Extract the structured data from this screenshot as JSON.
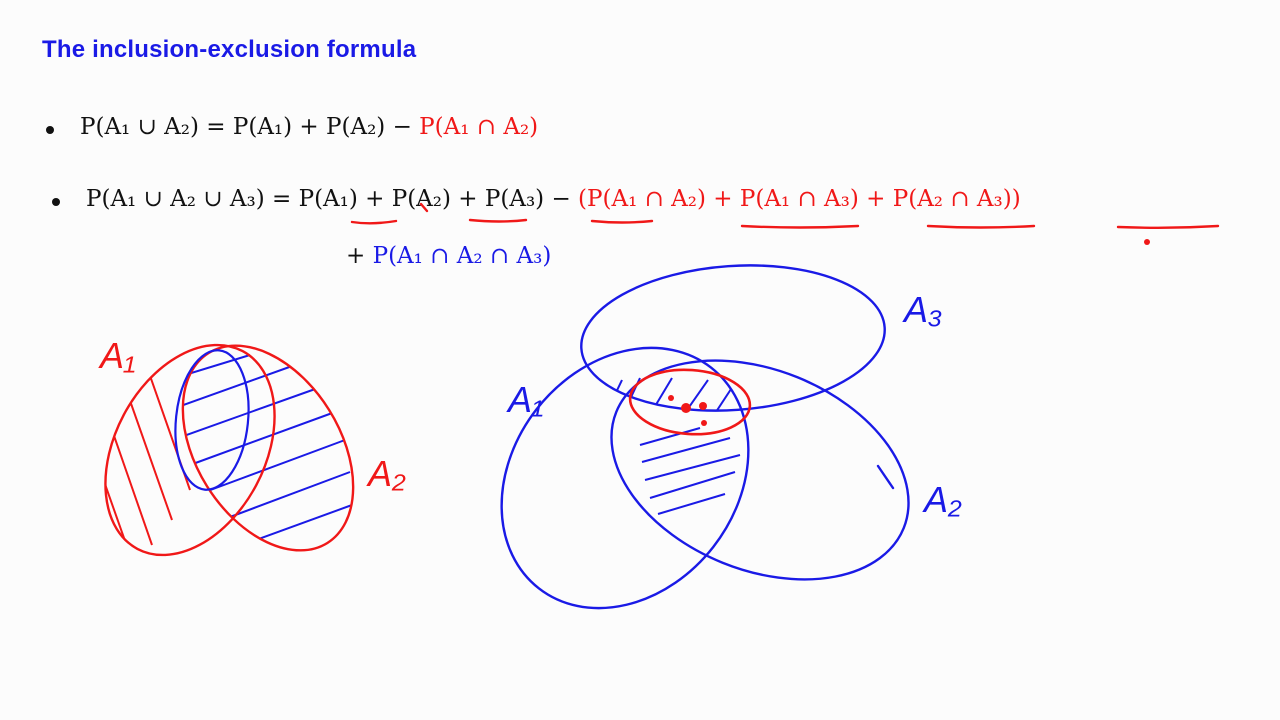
{
  "slide": {
    "title": "The inclusion-exclusion formula",
    "formula1": {
      "black": "P(A₁ ∪ A₂) = P(A₁) + P(A₂) − ",
      "red": "P(A₁ ∩ A₂)"
    },
    "formula2": {
      "black": "P(A₁ ∪ A₂ ∪ A₃) = P(A₁) + P(A₂) + P(A₃) − ",
      "red": "(P(A₁ ∩ A₂) + P(A₁ ∩ A₃) + P(A₂ ∩ A₃))",
      "plus": "+ ",
      "blue": "P(A₁ ∩ A₂ ∩ A₃)"
    }
  },
  "annotations": {
    "left_label_a1": "A₁",
    "left_label_a2": "A₂",
    "right_label_a1": "A₁",
    "right_label_a2": "A₂",
    "right_label_a3": "A₃",
    "ink_red": "#f01818",
    "ink_blue": "#1a1ae6"
  }
}
